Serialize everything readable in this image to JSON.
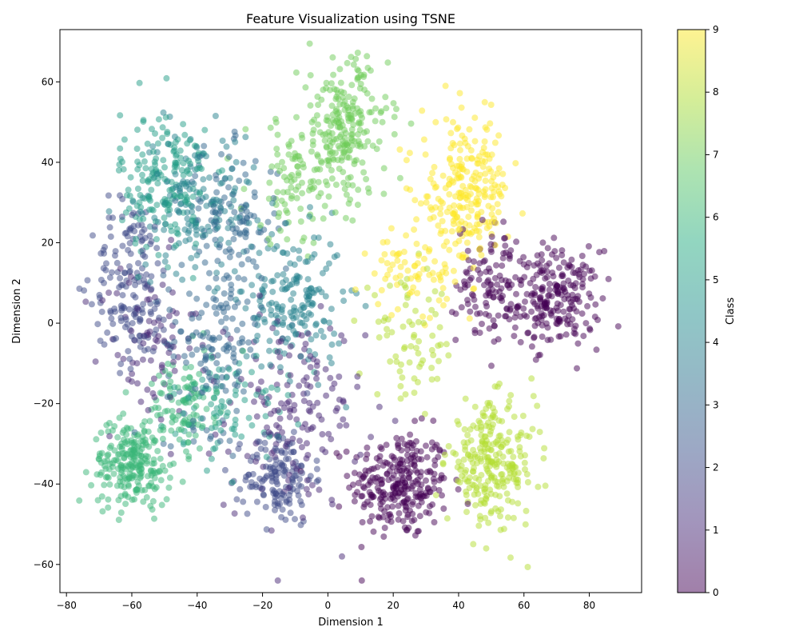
{
  "chart_data": {
    "type": "scatter",
    "title": "Feature Visualization using TSNE",
    "xlabel": "Dimension 1",
    "ylabel": "Dimension 2",
    "xlim": [
      -82,
      96
    ],
    "ylim": [
      -67,
      73
    ],
    "x_ticks": [
      -80,
      -60,
      -40,
      -20,
      0,
      20,
      40,
      60,
      80
    ],
    "y_ticks": [
      -60,
      -40,
      -20,
      0,
      20,
      40,
      60
    ],
    "grid": false,
    "point_alpha": 0.5,
    "colorbar": {
      "label": "Class",
      "range": [
        0,
        9
      ],
      "ticks": [
        0,
        1,
        2,
        3,
        4,
        5,
        6,
        7,
        8,
        9
      ],
      "colormap": "viridis",
      "colors": [
        "#440154",
        "#472c7a",
        "#3b518b",
        "#2c718e",
        "#21908d",
        "#27ad81",
        "#5cc863",
        "#aadc32",
        "#fde725"
      ]
    },
    "clusters": [
      {
        "class": 0,
        "center": [
          22,
          -40
        ],
        "spread": [
          10,
          9
        ],
        "count": 280
      },
      {
        "class": 0,
        "center": [
          70,
          6
        ],
        "spread": [
          9,
          8
        ],
        "count": 220
      },
      {
        "class": 0,
        "center": [
          50,
          10
        ],
        "spread": [
          7,
          10
        ],
        "count": 120
      },
      {
        "class": 1,
        "center": [
          -10,
          -22
        ],
        "spread": [
          14,
          16
        ],
        "count": 160
      },
      {
        "class": 1,
        "center": [
          -55,
          -5
        ],
        "spread": [
          10,
          14
        ],
        "count": 80
      },
      {
        "class": 2,
        "center": [
          -15,
          -38
        ],
        "spread": [
          7,
          8
        ],
        "count": 150
      },
      {
        "class": 2,
        "center": [
          -60,
          10
        ],
        "spread": [
          8,
          14
        ],
        "count": 160
      },
      {
        "class": 3,
        "center": [
          -35,
          -5
        ],
        "spread": [
          10,
          14
        ],
        "count": 140
      },
      {
        "class": 3,
        "center": [
          -30,
          25
        ],
        "spread": [
          10,
          12
        ],
        "count": 110
      },
      {
        "class": 4,
        "center": [
          -10,
          5
        ],
        "spread": [
          10,
          12
        ],
        "count": 180
      },
      {
        "class": 4,
        "center": [
          -40,
          30
        ],
        "spread": [
          12,
          12
        ],
        "count": 150
      },
      {
        "class": 5,
        "center": [
          -50,
          35
        ],
        "spread": [
          9,
          12
        ],
        "count": 180
      },
      {
        "class": 5,
        "center": [
          -30,
          -20
        ],
        "spread": [
          12,
          9
        ],
        "count": 90
      },
      {
        "class": 6,
        "center": [
          -60,
          -35
        ],
        "spread": [
          8,
          7
        ],
        "count": 230
      },
      {
        "class": 6,
        "center": [
          -45,
          -20
        ],
        "spread": [
          7,
          8
        ],
        "count": 100
      },
      {
        "class": 7,
        "center": [
          5,
          48
        ],
        "spread": [
          9,
          12
        ],
        "count": 230
      },
      {
        "class": 7,
        "center": [
          -10,
          35
        ],
        "spread": [
          10,
          10
        ],
        "count": 90
      },
      {
        "class": 8,
        "center": [
          50,
          -35
        ],
        "spread": [
          9,
          10
        ],
        "count": 260
      },
      {
        "class": 8,
        "center": [
          25,
          -5
        ],
        "spread": [
          10,
          10
        ],
        "count": 70
      },
      {
        "class": 9,
        "center": [
          42,
          32
        ],
        "spread": [
          9,
          12
        ],
        "count": 250
      },
      {
        "class": 9,
        "center": [
          25,
          12
        ],
        "spread": [
          8,
          6
        ],
        "count": 60
      }
    ]
  }
}
